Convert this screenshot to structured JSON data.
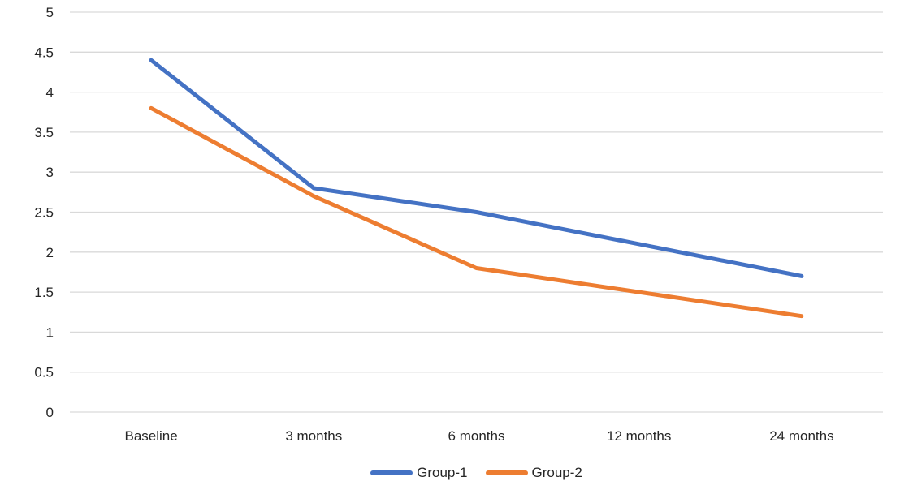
{
  "chart_data": {
    "type": "line",
    "categories": [
      "Baseline",
      "3 months",
      "6 months",
      "12 months",
      "24 months"
    ],
    "series": [
      {
        "name": "Group-1",
        "color": "#4472C4",
        "values": [
          4.4,
          2.8,
          2.5,
          2.1,
          1.7
        ]
      },
      {
        "name": "Group-2",
        "color": "#ED7D31",
        "values": [
          3.8,
          2.7,
          1.8,
          1.5,
          1.2
        ]
      }
    ],
    "title": "",
    "xlabel": "",
    "ylabel": "",
    "ylim": [
      0,
      5
    ],
    "ytick_step": 0.5,
    "ytick_labels": [
      "0",
      "0.5",
      "1",
      "1.5",
      "2",
      "2.5",
      "3",
      "3.5",
      "4",
      "4.5",
      "5"
    ],
    "grid": true,
    "gridline_color": "#D9D9D9",
    "text_color": "#262626",
    "legend_position": "bottom",
    "line_width": 5
  }
}
